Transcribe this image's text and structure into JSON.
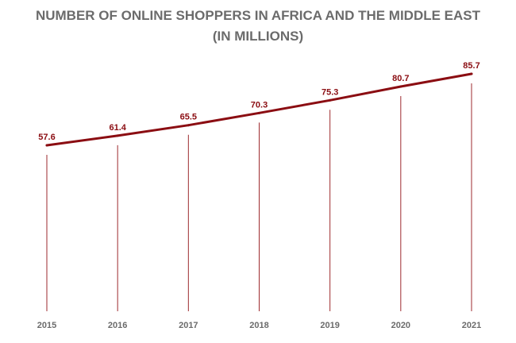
{
  "chart_data": {
    "type": "line",
    "title_lines": [
      "NUMBER OF ONLINE SHOPPERS IN AFRICA AND THE MIDDLE EAST",
      "(IN MILLIONS)"
    ],
    "categories": [
      "2015",
      "2016",
      "2017",
      "2018",
      "2019",
      "2020",
      "2021"
    ],
    "series": [
      {
        "values": [
          57.6,
          61.4,
          65.5,
          70.3,
          75.3,
          80.7,
          85.7
        ],
        "labels": [
          "57.6",
          "61.4",
          "65.5",
          "70.3",
          "75.3",
          "80.7",
          "85.7"
        ]
      }
    ],
    "xlabel": "",
    "ylabel": "",
    "grid": false,
    "legend": "none",
    "colors": {
      "line": "#8b0d12",
      "drop_line": "#9e2a2e",
      "data_label": "#8b0d12",
      "tick_label": "#6b6b6b",
      "title": "#6b6b6b"
    }
  }
}
